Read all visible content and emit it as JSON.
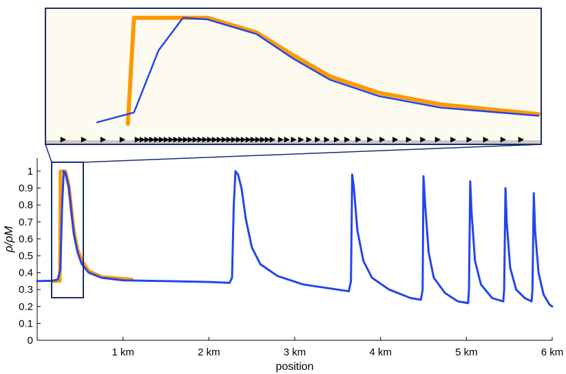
{
  "chart_data": {
    "type": "line",
    "xlabel": "position",
    "ylabel": "ρ/ρM",
    "x_ticks": [
      "1 km",
      "2 km",
      "3 km",
      "4 km",
      "5 km",
      "6 km"
    ],
    "y_ticks": [
      "0",
      "0.1",
      "0.2",
      "0.3",
      "0.4",
      "0.5",
      "0.6",
      "0.7",
      "0.8",
      "0.9",
      "1"
    ],
    "xlim": [
      0,
      6
    ],
    "ylim": [
      0,
      1.05
    ],
    "x_unit": "km",
    "grid": false,
    "colors": {
      "traffic": "#2244ee",
      "shock": "#ff9900",
      "frame": "#1a2a6c",
      "inset_bg": "#fdfbef",
      "car": "#e86a1a"
    },
    "series": [
      {
        "key": "blue",
        "points": [
          [
            0,
            0.35
          ],
          [
            0.18,
            0.352
          ],
          [
            0.24,
            0.36
          ],
          [
            0.27,
            0.42
          ],
          [
            0.29,
            0.8
          ],
          [
            0.31,
            1.0
          ],
          [
            0.33,
            0.99
          ],
          [
            0.37,
            0.9
          ],
          [
            0.4,
            0.75
          ],
          [
            0.43,
            0.62
          ],
          [
            0.47,
            0.52
          ],
          [
            0.52,
            0.45
          ],
          [
            0.6,
            0.4
          ],
          [
            0.75,
            0.37
          ],
          [
            1.0,
            0.355
          ],
          [
            1.5,
            0.35
          ],
          [
            2.0,
            0.345
          ],
          [
            2.24,
            0.34
          ],
          [
            2.27,
            0.37
          ],
          [
            2.29,
            0.8
          ],
          [
            2.31,
            1.0
          ],
          [
            2.34,
            0.98
          ],
          [
            2.38,
            0.9
          ],
          [
            2.43,
            0.72
          ],
          [
            2.5,
            0.55
          ],
          [
            2.6,
            0.45
          ],
          [
            2.8,
            0.38
          ],
          [
            3.1,
            0.33
          ],
          [
            3.5,
            0.3
          ],
          [
            3.63,
            0.29
          ],
          [
            3.655,
            0.35
          ],
          [
            3.67,
            0.98
          ],
          [
            3.69,
            0.9
          ],
          [
            3.73,
            0.65
          ],
          [
            3.8,
            0.47
          ],
          [
            3.9,
            0.37
          ],
          [
            4.1,
            0.3
          ],
          [
            4.35,
            0.25
          ],
          [
            4.47,
            0.24
          ],
          [
            4.49,
            0.3
          ],
          [
            4.5,
            0.97
          ],
          [
            4.52,
            0.8
          ],
          [
            4.56,
            0.52
          ],
          [
            4.62,
            0.37
          ],
          [
            4.75,
            0.28
          ],
          [
            4.9,
            0.23
          ],
          [
            5.02,
            0.22
          ],
          [
            5.03,
            0.3
          ],
          [
            5.045,
            0.94
          ],
          [
            5.06,
            0.76
          ],
          [
            5.1,
            0.47
          ],
          [
            5.17,
            0.33
          ],
          [
            5.3,
            0.25
          ],
          [
            5.43,
            0.23
          ],
          [
            5.44,
            0.3
          ],
          [
            5.455,
            0.9
          ],
          [
            5.47,
            0.7
          ],
          [
            5.51,
            0.43
          ],
          [
            5.58,
            0.3
          ],
          [
            5.68,
            0.25
          ],
          [
            5.76,
            0.23
          ],
          [
            5.77,
            0.3
          ],
          [
            5.785,
            0.87
          ],
          [
            5.8,
            0.65
          ],
          [
            5.84,
            0.4
          ],
          [
            5.9,
            0.27
          ],
          [
            5.97,
            0.21
          ],
          [
            6.0,
            0.2
          ]
        ]
      },
      {
        "key": "orange",
        "points": [
          [
            0.18,
            0.35
          ],
          [
            0.265,
            0.35
          ],
          [
            0.27,
            1.0
          ],
          [
            0.33,
            1.0
          ],
          [
            0.37,
            0.91
          ],
          [
            0.4,
            0.77
          ],
          [
            0.43,
            0.64
          ],
          [
            0.47,
            0.54
          ],
          [
            0.52,
            0.47
          ],
          [
            0.6,
            0.41
          ],
          [
            0.75,
            0.375
          ],
          [
            1.1,
            0.36
          ]
        ]
      }
    ],
    "zoom_window": {
      "x": [
        0.2,
        0.6
      ],
      "y": [
        0.25,
        1.05
      ]
    }
  }
}
